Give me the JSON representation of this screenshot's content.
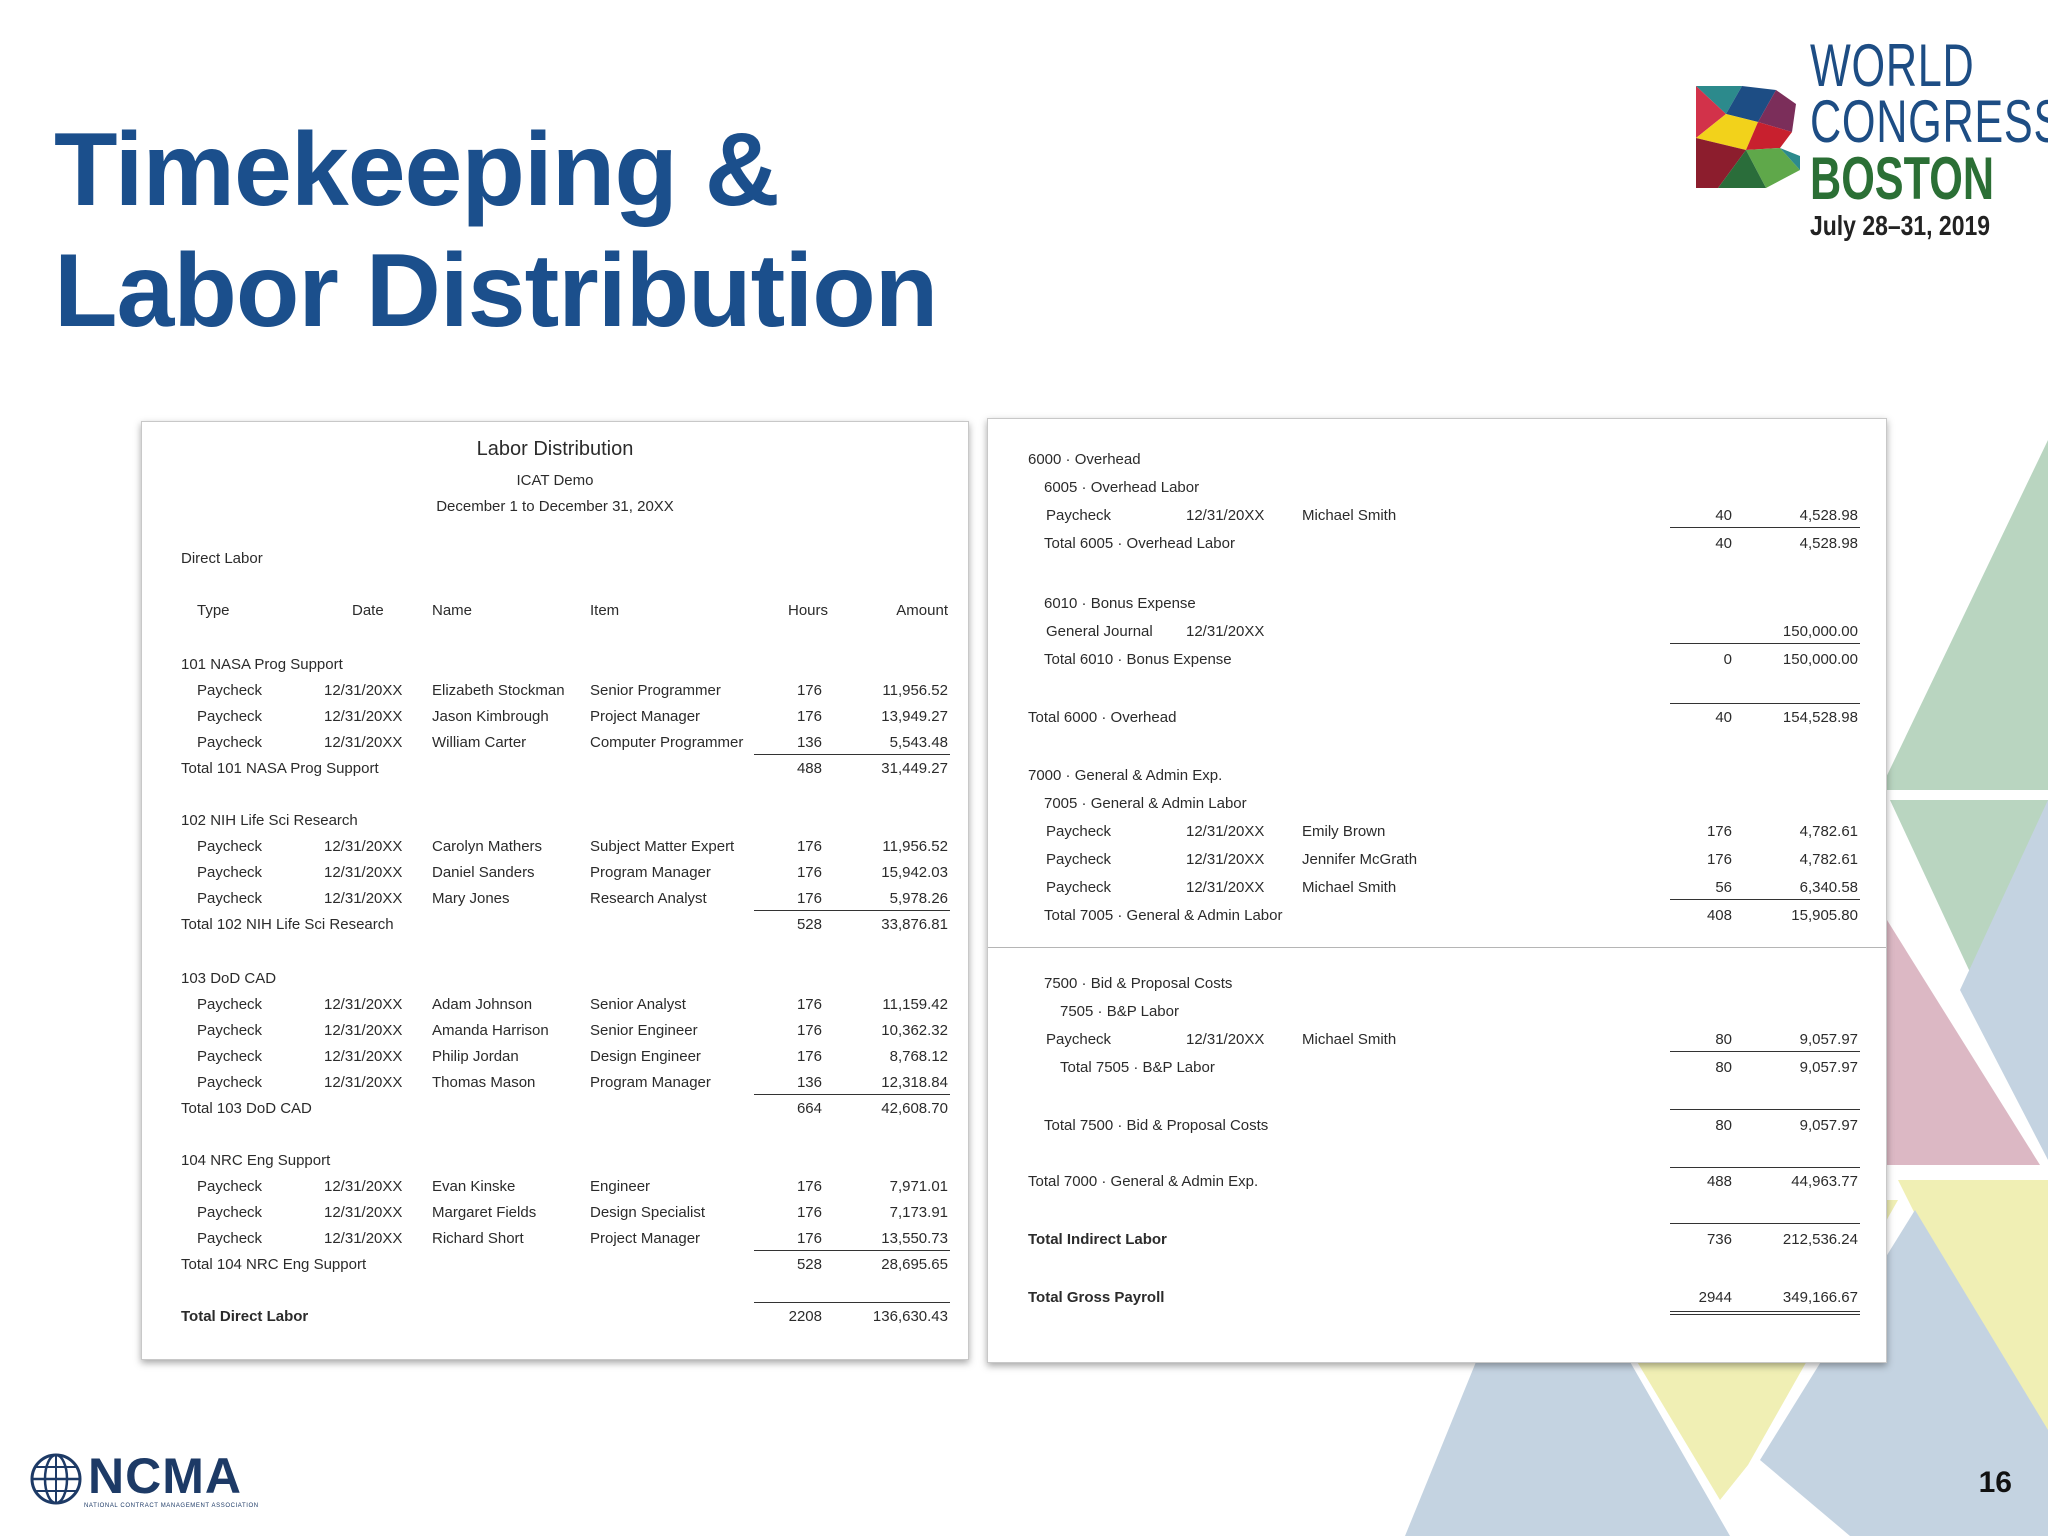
{
  "slide": {
    "title_line1": "Timekeeping &",
    "title_line2": "Labor Distribution",
    "page_number": "16"
  },
  "event_logo": {
    "line1": "WORLD",
    "line2": "CONGRESS",
    "line3": "BOSTON",
    "dates": "July 28–31, 2019"
  },
  "org_logo": {
    "name": "NCMA",
    "tagline": "NATIONAL CONTRACT MANAGEMENT ASSOCIATION"
  },
  "colors": {
    "title_blue": "#1b4f8c",
    "tri_green": "#b9d5c0",
    "tri_blue": "#c4d3e1",
    "tri_pink": "#dcb8c4",
    "tri_yellow": "#f0efb4"
  },
  "report_left": {
    "title": "Labor Distribution",
    "company": "ICAT Demo",
    "period": "December 1 to December 31, 20XX",
    "section": "Direct Labor",
    "columns": {
      "type": "Type",
      "date": "Date",
      "name": "Name",
      "item": "Item",
      "hours": "Hours",
      "amount": "Amount"
    },
    "groups": [
      {
        "header": "101 NASA Prog Support",
        "rows": [
          {
            "type": "Paycheck",
            "date": "12/31/20XX",
            "name": "Elizabeth Stockman",
            "item": "Senior Programmer",
            "hours": "176",
            "amount": "11,956.52"
          },
          {
            "type": "Paycheck",
            "date": "12/31/20XX",
            "name": "Jason Kimbrough",
            "item": "Project Manager",
            "hours": "176",
            "amount": "13,949.27"
          },
          {
            "type": "Paycheck",
            "date": "12/31/20XX",
            "name": "William Carter",
            "item": "Computer Programmer",
            "hours": "136",
            "amount": "5,543.48"
          }
        ],
        "total_label": "Total 101 NASA Prog Support",
        "total_hours": "488",
        "total_amount": "31,449.27"
      },
      {
        "header": "102 NIH Life Sci Research",
        "rows": [
          {
            "type": "Paycheck",
            "date": "12/31/20XX",
            "name": "Carolyn Mathers",
            "item": "Subject Matter Expert",
            "hours": "176",
            "amount": "11,956.52"
          },
          {
            "type": "Paycheck",
            "date": "12/31/20XX",
            "name": "Daniel Sanders",
            "item": "Program Manager",
            "hours": "176",
            "amount": "15,942.03"
          },
          {
            "type": "Paycheck",
            "date": "12/31/20XX",
            "name": "Mary Jones",
            "item": "Research Analyst",
            "hours": "176",
            "amount": "5,978.26"
          }
        ],
        "total_label": "Total 102 NIH Life Sci Research",
        "total_hours": "528",
        "total_amount": "33,876.81"
      },
      {
        "header": "103 DoD CAD",
        "rows": [
          {
            "type": "Paycheck",
            "date": "12/31/20XX",
            "name": "Adam Johnson",
            "item": "Senior Analyst",
            "hours": "176",
            "amount": "11,159.42"
          },
          {
            "type": "Paycheck",
            "date": "12/31/20XX",
            "name": "Amanda Harrison",
            "item": "Senior Engineer",
            "hours": "176",
            "amount": "10,362.32"
          },
          {
            "type": "Paycheck",
            "date": "12/31/20XX",
            "name": "Philip Jordan",
            "item": "Design Engineer",
            "hours": "176",
            "amount": "8,768.12"
          },
          {
            "type": "Paycheck",
            "date": "12/31/20XX",
            "name": "Thomas Mason",
            "item": "Program Manager",
            "hours": "136",
            "amount": "12,318.84"
          }
        ],
        "total_label": "Total 103 DoD CAD",
        "total_hours": "664",
        "total_amount": "42,608.70"
      },
      {
        "header": "104 NRC Eng Support",
        "rows": [
          {
            "type": "Paycheck",
            "date": "12/31/20XX",
            "name": "Evan Kinske",
            "item": "Engineer",
            "hours": "176",
            "amount": "7,971.01"
          },
          {
            "type": "Paycheck",
            "date": "12/31/20XX",
            "name": "Margaret Fields",
            "item": "Design Specialist",
            "hours": "176",
            "amount": "7,173.91"
          },
          {
            "type": "Paycheck",
            "date": "12/31/20XX",
            "name": "Richard Short",
            "item": "Project Manager",
            "hours": "176",
            "amount": "13,550.73"
          }
        ],
        "total_label": "Total 104 NRC Eng Support",
        "total_hours": "528",
        "total_amount": "28,695.65"
      }
    ],
    "grand_total_label": "Total Direct Labor",
    "grand_total_hours": "2208",
    "grand_total_amount": "136,630.43"
  },
  "report_right": {
    "overhead": {
      "header": "6000 · Overhead",
      "sub1": {
        "header": "6005 · Overhead Labor",
        "row": {
          "type": "Paycheck",
          "date": "12/31/20XX",
          "name": "Michael Smith",
          "hours": "40",
          "amount": "4,528.98"
        },
        "total_label": "Total 6005 · Overhead Labor",
        "total_hours": "40",
        "total_amount": "4,528.98"
      },
      "sub2": {
        "header": "6010 · Bonus Expense",
        "row": {
          "type": "General Journal",
          "date": "12/31/20XX",
          "amount": "150,000.00"
        },
        "total_label": "Total 6010 · Bonus Expense",
        "total_hours": "0",
        "total_amount": "150,000.00"
      },
      "total_label": "Total 6000 · Overhead",
      "total_hours": "40",
      "total_amount": "154,528.98"
    },
    "ga": {
      "header": "7000 · General & Admin Exp.",
      "sub1": {
        "header": "7005 · General & Admin Labor",
        "rows": [
          {
            "type": "Paycheck",
            "date": "12/31/20XX",
            "name": "Emily Brown",
            "hours": "176",
            "amount": "4,782.61"
          },
          {
            "type": "Paycheck",
            "date": "12/31/20XX",
            "name": "Jennifer McGrath",
            "hours": "176",
            "amount": "4,782.61"
          },
          {
            "type": "Paycheck",
            "date": "12/31/20XX",
            "name": "Michael Smith",
            "hours": "56",
            "amount": "6,340.58"
          }
        ],
        "total_label": "Total 7005 · General & Admin Labor",
        "total_hours": "408",
        "total_amount": "15,905.80"
      },
      "bp": {
        "header": "7500 · Bid & Proposal Costs",
        "sub_header": "7505 · B&P Labor",
        "row": {
          "type": "Paycheck",
          "date": "12/31/20XX",
          "name": "Michael Smith",
          "hours": "80",
          "amount": "9,057.97"
        },
        "sub_total_label": "Total 7505 · B&P Labor",
        "sub_total_hours": "80",
        "sub_total_amount": "9,057.97",
        "total_label": "Total 7500 · Bid & Proposal Costs",
        "total_hours": "80",
        "total_amount": "9,057.97"
      },
      "total_label": "Total 7000 · General & Admin Exp.",
      "total_hours": "488",
      "total_amount": "44,963.77"
    },
    "indirect_label": "Total Indirect Labor",
    "indirect_hours": "736",
    "indirect_amount": "212,536.24",
    "gross_label": "Total Gross Payroll",
    "gross_hours": "2944",
    "gross_amount": "349,166.67"
  }
}
